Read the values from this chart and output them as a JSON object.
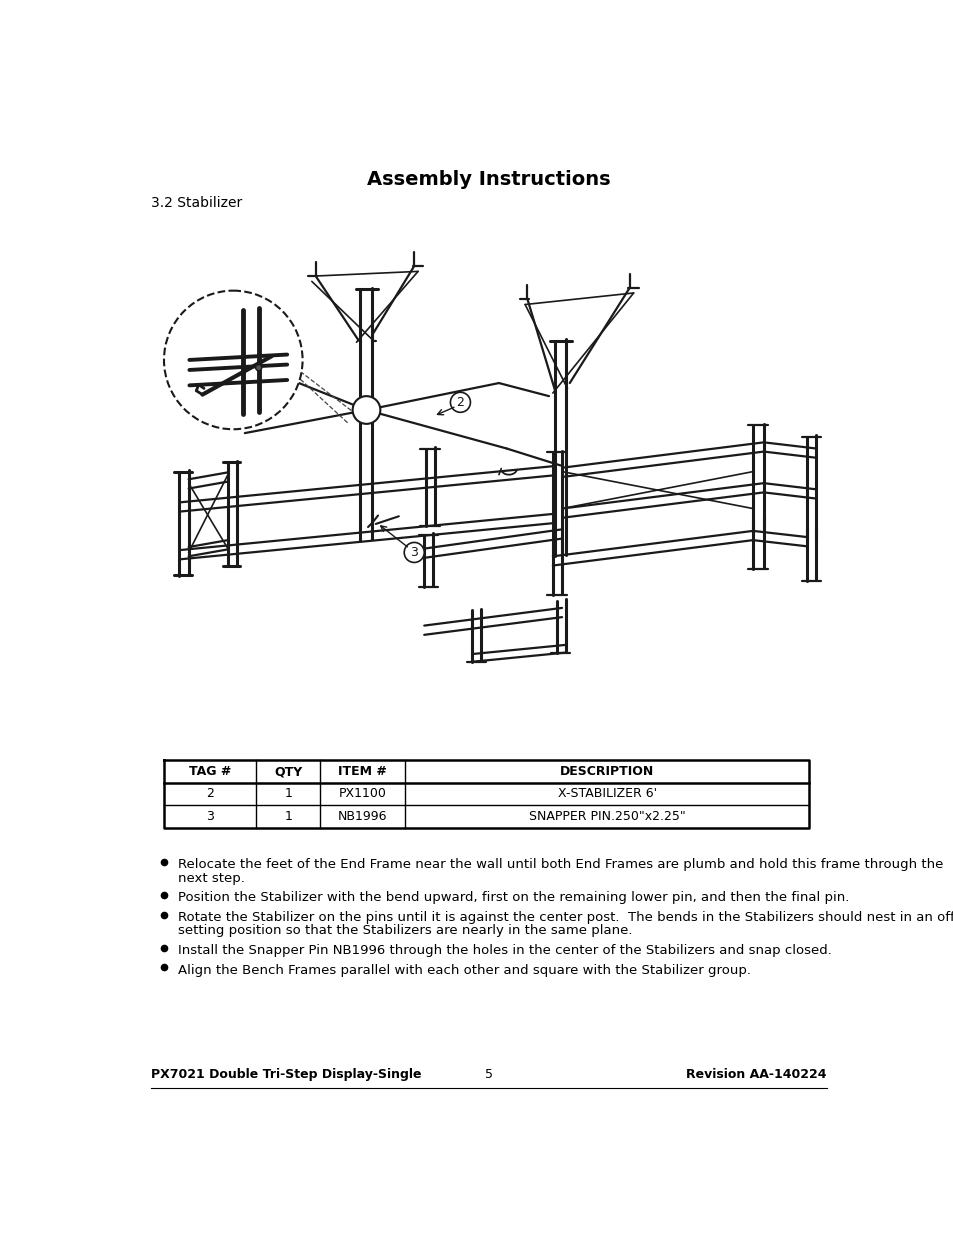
{
  "title": "Assembly Instructions",
  "subtitle": "3.2 Stabilizer",
  "table_headers": [
    "TAG #",
    "QTY",
    "ITEM #",
    "DESCRIPTION"
  ],
  "table_rows": [
    [
      "2",
      "1",
      "PX1100",
      "X-STABILIZER 6'"
    ],
    [
      "3",
      "1",
      "NB1996",
      "SNAPPER PIN.250\"x2.25\""
    ]
  ],
  "bullet_points": [
    "Relocate the feet of the End Frame near the wall until both End Frames are plumb and hold this frame through the\nnext step.",
    "Position the Stabilizer with the bend upward, first on the remaining lower pin, and then the final pin.",
    "Rotate the Stabilizer on the pins until it is against the center post.  The bends in the Stabilizers should nest in an off-\nsetting position so that the Stabilizers are nearly in the same plane.",
    "Install the Snapper Pin NB1996 through the holes in the center of the Stabilizers and snap closed.",
    "Align the Bench Frames parallel with each other and square with the Stabilizer group."
  ],
  "footer_left": "PX7021 Double Tri-Step Display-Single",
  "footer_center": "5",
  "footer_right": "Revision AA-140224",
  "bg_color": "#ffffff",
  "text_color": "#000000"
}
